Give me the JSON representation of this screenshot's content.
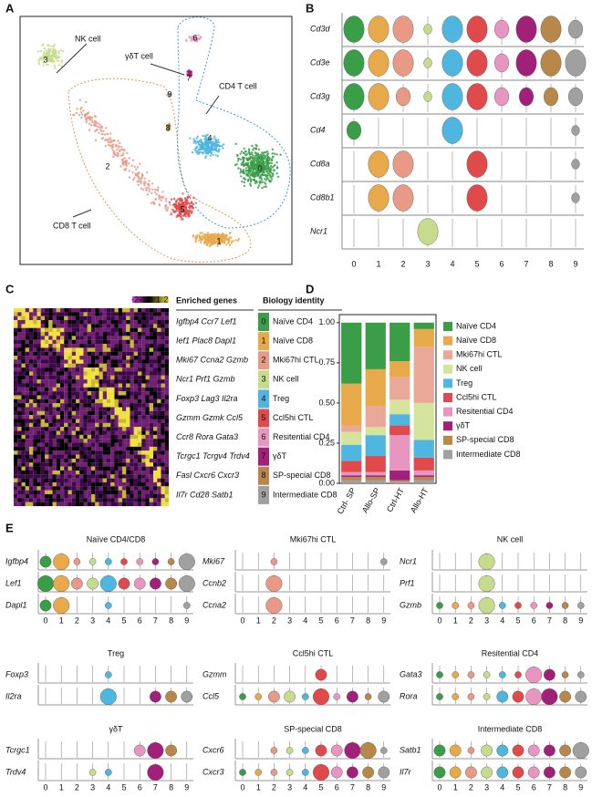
{
  "panel_labels": [
    "A",
    "B",
    "C",
    "D",
    "E"
  ],
  "cluster_colors": [
    "#3a9e48",
    "#e8a94a",
    "#e89a86",
    "#c6dc8c",
    "#4fb6e0",
    "#e04a4a",
    "#e896c0",
    "#a0207a",
    "#b8884a",
    "#a0a0a0"
  ],
  "panel_a": {
    "cluster_labels": [
      "0",
      "1",
      "2",
      "3",
      "4",
      "5",
      "6",
      "7",
      "8",
      "9"
    ],
    "cell_labels": [
      "NK cell",
      "γδT cell",
      "CD4 T cell",
      "CD8 T cell"
    ]
  },
  "panel_b": {
    "genes": [
      "Cd3d",
      "Cd3e",
      "Cd3g",
      "Cd4",
      "Cd8a",
      "Cd8b1",
      "Ncr1"
    ],
    "x_labels": [
      "0",
      "1",
      "2",
      "3",
      "4",
      "5",
      "6",
      "7",
      "8",
      "9"
    ]
  },
  "panel_c": {
    "scale_labels": [
      "-2",
      "-1",
      "0",
      "1",
      "2"
    ],
    "headers": [
      "Enriched genes",
      "Biology identity"
    ],
    "rows": [
      [
        "Igfbp4 Ccr7 Lef1",
        "0",
        "Naïve CD4"
      ],
      [
        "Ief1 Plac8 Dapl1",
        "1",
        "Naïve  CD8"
      ],
      [
        "Mki67 Ccna2 Gzmb",
        "2",
        "Mki67hi CTL"
      ],
      [
        "Ncr1 Prf1  Gzmb",
        "3",
        "NK cell"
      ],
      [
        "Foxp3 Lag3 Il2ra",
        "4",
        "Treg"
      ],
      [
        "Gzmm Gzmk Ccl5",
        "5",
        "Ccl5hi CTL"
      ],
      [
        "Ccr8 Rora Gata3",
        "6",
        "Resitential CD4"
      ],
      [
        "Tcrgc1 Tcrgv4 Trdv4",
        "7",
        "γδT"
      ],
      [
        "Fasl Cxcr6 Cxcr3",
        "8",
        "SP-special CD8"
      ],
      [
        "Il7r Cd28 Satb1",
        "9",
        "Intermediate CD8"
      ]
    ]
  },
  "chart_data": {
    "type": "stacked_bar",
    "categories": [
      "Ctrl- SP",
      "Allo-SP",
      "Ctrl-HT",
      "Allo-HT"
    ],
    "ylim": [
      0,
      1.05
    ],
    "yticks": [
      {
        "value": 0,
        "label": "0.00"
      },
      {
        "value": 0.25,
        "label": "0.25"
      },
      {
        "value": 0.5,
        "label": "0.50"
      },
      {
        "value": 0.75,
        "label": "0.75"
      },
      {
        "value": 1,
        "label": "1.00"
      }
    ],
    "legend": "right",
    "series": [
      {
        "name": "Naïve CD4",
        "color": "#3a9e48",
        "values": [
          0.38,
          0.29,
          0.24,
          0.04
        ]
      },
      {
        "name": "Naïve CD8",
        "color": "#e8a94a",
        "values": [
          0.26,
          0.23,
          0.1,
          0.11
        ]
      },
      {
        "name": "Mki67hi CTL",
        "color": "#eaa898",
        "values": [
          0.04,
          0.13,
          0.14,
          0.35
        ]
      },
      {
        "name": "NK cell",
        "color": "#d4e49c",
        "values": [
          0.08,
          0.05,
          0.09,
          0.23
        ]
      },
      {
        "name": "Treg",
        "color": "#4fb6e0",
        "values": [
          0.1,
          0.13,
          0.07,
          0.11
        ]
      },
      {
        "name": "Ccl5hi CTL",
        "color": "#e04a4a",
        "values": [
          0.07,
          0.1,
          0.06,
          0.08
        ]
      },
      {
        "name": "Resitential CD4",
        "color": "#e896c0",
        "values": [
          0.02,
          0.02,
          0.22,
          0.03
        ]
      },
      {
        "name": "γδT",
        "color": "#a0207a",
        "values": [
          0.01,
          0.01,
          0.06,
          0.01
        ]
      },
      {
        "name": "SP-special CD8",
        "color": "#b8884a",
        "values": [
          0.02,
          0.02,
          0.01,
          0.02
        ]
      },
      {
        "name": "Intermediate CD8",
        "color": "#a0a0a0",
        "values": [
          0.02,
          0.02,
          0.01,
          0.02
        ]
      }
    ]
  },
  "panel_e": {
    "x_labels": [
      "0",
      "1",
      "2",
      "3",
      "4",
      "5",
      "6",
      "7",
      "8",
      "9"
    ],
    "groups": [
      {
        "title": "Naïve CD4/CD8",
        "genes": [
          "Igfbp4",
          "Lef1",
          "Dapl1"
        ]
      },
      {
        "title": "Mki67hi CTL",
        "genes": [
          "Mki67",
          "Ccnb2",
          "Ccna2"
        ]
      },
      {
        "title": "NK cell",
        "genes": [
          "Ncr1",
          "Prf1",
          "Gzmb"
        ]
      },
      {
        "title": "Treg",
        "genes": [
          "Foxp3",
          "Il2ra"
        ]
      },
      {
        "title": "Ccl5hi CTL",
        "genes": [
          "Gzmm",
          "Ccl5"
        ]
      },
      {
        "title": "Resitential CD4",
        "genes": [
          "Gata3",
          "Rora"
        ]
      },
      {
        "title": "γδT",
        "genes": [
          "Tcrgc1",
          "Trdv4"
        ]
      },
      {
        "title": "SP-special CD8",
        "genes": [
          "Cxcr6",
          "Cxcr3"
        ]
      },
      {
        "title": "Intermediate CD8",
        "genes": [
          "Satb1",
          "Il7r"
        ]
      }
    ]
  }
}
